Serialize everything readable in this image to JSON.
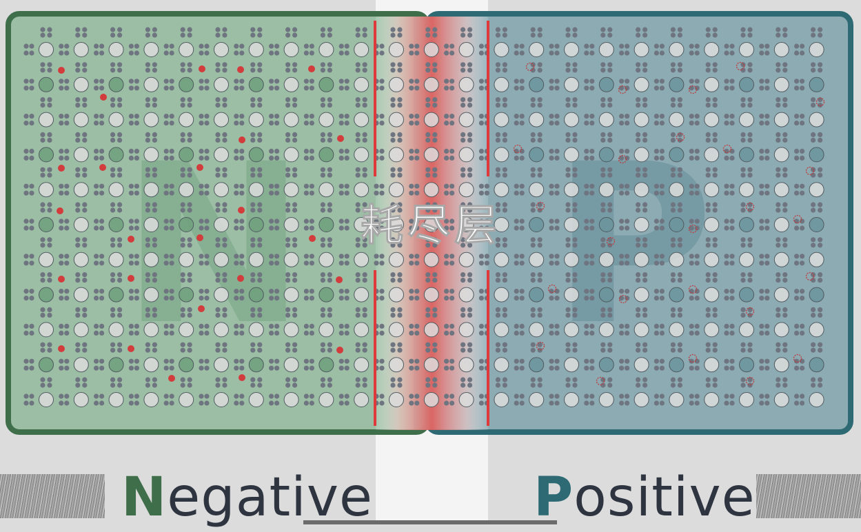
{
  "depletion_label": "耗尽层",
  "n_region": {
    "letter": "N",
    "word_initial": "N",
    "word_rest": "egative",
    "color": "#3f6e4a"
  },
  "p_region": {
    "letter": "P",
    "word_initial": "P",
    "word_rest": "ositive",
    "color": "#2e6a74"
  },
  "colors": {
    "n_fill": "#8fb89a",
    "p_fill": "#7fa2ab",
    "depletion": "#e85a5a",
    "boundary_line": "#e0393b",
    "electron": "#d23c3c",
    "hole_outline": "#c0393b",
    "atom_fill": "#dcdcdc",
    "dot": "#6f7580"
  }
}
